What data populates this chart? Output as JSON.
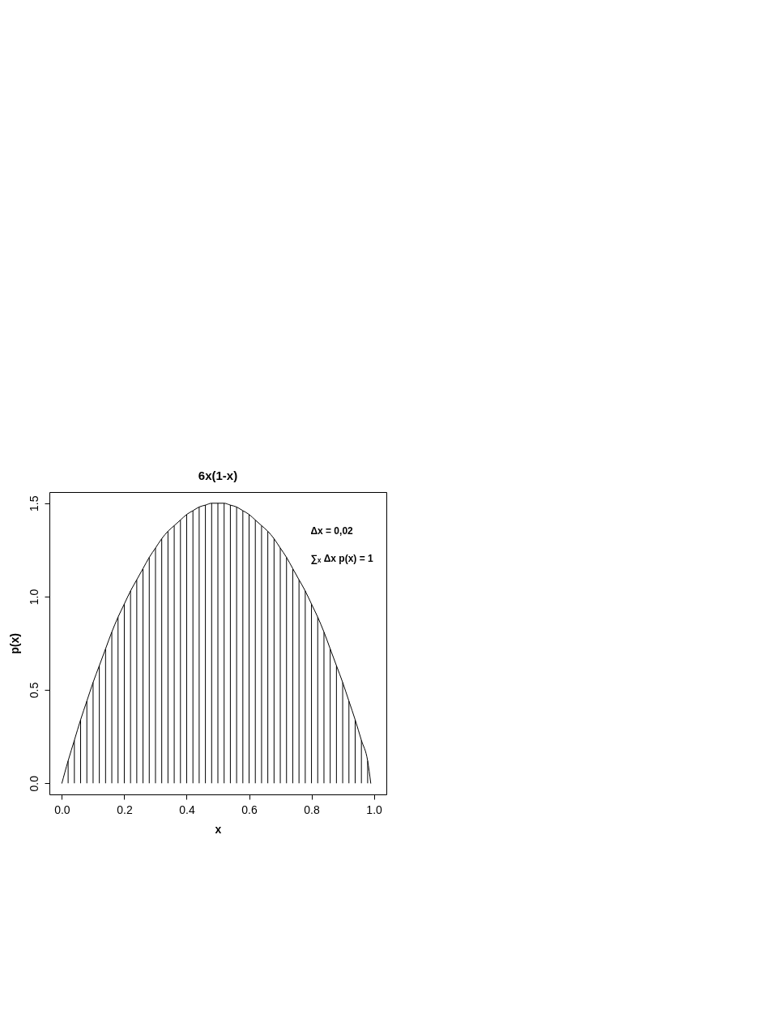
{
  "chart_data": {
    "type": "line",
    "title": "6x(1-x)",
    "xlabel": "x",
    "ylabel": "p(x)",
    "annotations": [
      "Δx = 0,02",
      "∑ₓ Δx p(x) = 1"
    ],
    "xlim": [
      -0.04,
      1.04
    ],
    "ylim": [
      -0.06,
      1.56
    ],
    "xticks": [
      {
        "value": 0,
        "label": "0.0"
      },
      0.2,
      0.4,
      0.6,
      0.8,
      {
        "value": 1,
        "label": "1.0"
      }
    ],
    "yticks": [
      {
        "value": 0,
        "label": "0.0"
      },
      0.5,
      {
        "value": 1,
        "label": "1.0"
      },
      1.5
    ],
    "grid": false,
    "series": [
      {
        "color": "#000000",
        "x": [
          0,
          0.02,
          0.04,
          0.06,
          0.08,
          0.1,
          0.12,
          0.14,
          0.16,
          0.18,
          0.2,
          0.22,
          0.24,
          0.26,
          0.28,
          0.3,
          0.32,
          0.34,
          0.36,
          0.38,
          0.4,
          0.42,
          0.44,
          0.46,
          0.48,
          0.5,
          0.52,
          0.54,
          0.56,
          0.58,
          0.6,
          0.62,
          0.64,
          0.66,
          0.68,
          0.7,
          0.72,
          0.74,
          0.76,
          0.78,
          0.8,
          0.82,
          0.84,
          0.86,
          0.88,
          0.9,
          0.92,
          0.94,
          0.96,
          0.98,
          0.99
        ],
        "values": [
          0,
          0.12,
          0.23,
          0.34,
          0.44,
          0.54,
          0.63,
          0.72,
          0.81,
          0.89,
          0.96,
          1.03,
          1.09,
          1.15,
          1.21,
          1.26,
          1.31,
          1.35,
          1.38,
          1.41,
          1.44,
          1.46,
          1.48,
          1.49,
          1.5,
          1.5,
          1.5,
          1.49,
          1.48,
          1.46,
          1.44,
          1.41,
          1.38,
          1.35,
          1.31,
          1.26,
          1.21,
          1.15,
          1.09,
          1.03,
          0.96,
          0.89,
          0.81,
          0.72,
          0.63,
          0.54,
          0.44,
          0.34,
          0.23,
          0.12,
          0
        ]
      },
      {
        "type": "bar",
        "color": "#000000",
        "x": [
          0.02,
          0.04,
          0.06,
          0.08,
          0.1,
          0.12,
          0.14,
          0.16,
          0.18,
          0.2,
          0.22,
          0.24,
          0.26,
          0.28,
          0.3,
          0.32,
          0.34,
          0.36,
          0.38,
          0.4,
          0.42,
          0.44,
          0.46,
          0.48,
          0.5,
          0.52,
          0.54,
          0.56,
          0.58,
          0.6,
          0.62,
          0.64,
          0.66,
          0.68,
          0.7,
          0.72,
          0.74,
          0.76,
          0.78,
          0.8,
          0.82,
          0.84,
          0.86,
          0.88,
          0.9,
          0.92,
          0.94,
          0.96,
          0.98
        ],
        "values": [
          0.12,
          0.23,
          0.34,
          0.44,
          0.54,
          0.63,
          0.72,
          0.81,
          0.89,
          0.96,
          1.03,
          1.09,
          1.15,
          1.21,
          1.26,
          1.31,
          1.35,
          1.38,
          1.41,
          1.44,
          1.46,
          1.48,
          1.49,
          1.5,
          1.5,
          1.5,
          1.49,
          1.48,
          1.46,
          1.44,
          1.41,
          1.38,
          1.35,
          1.31,
          1.26,
          1.21,
          1.15,
          1.09,
          1.03,
          0.96,
          0.89,
          0.81,
          0.72,
          0.63,
          0.54,
          0.44,
          0.34,
          0.23,
          0.12
        ]
      }
    ]
  }
}
